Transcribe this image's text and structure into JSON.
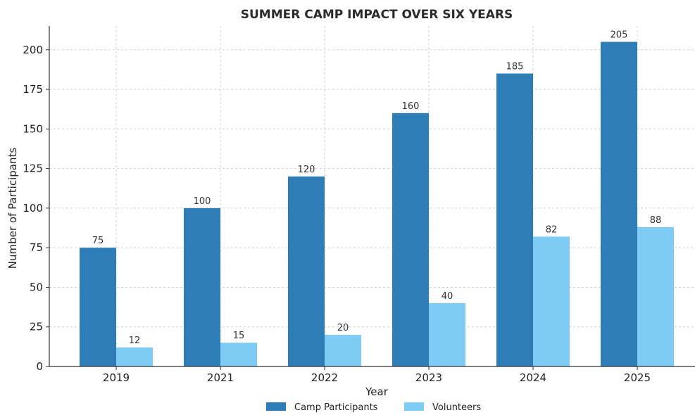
{
  "chart_data": {
    "type": "bar",
    "title": "SUMMER CAMP IMPACT OVER SIX YEARS",
    "xlabel": "Year",
    "ylabel": "Number of Participants",
    "categories": [
      "2019",
      "2021",
      "2022",
      "2023",
      "2024",
      "2025"
    ],
    "series": [
      {
        "name": "Camp Participants",
        "values": [
          75,
          100,
          120,
          160,
          185,
          205
        ],
        "color": "#2e7db6"
      },
      {
        "name": "Volunteers",
        "values": [
          12,
          15,
          20,
          40,
          82,
          88
        ],
        "color": "#7ecbf5"
      }
    ],
    "ylim": [
      0,
      215
    ],
    "yticks": [
      0,
      25,
      50,
      75,
      100,
      125,
      150,
      175,
      200
    ],
    "grid": true,
    "legend_position": "bottom-center"
  }
}
